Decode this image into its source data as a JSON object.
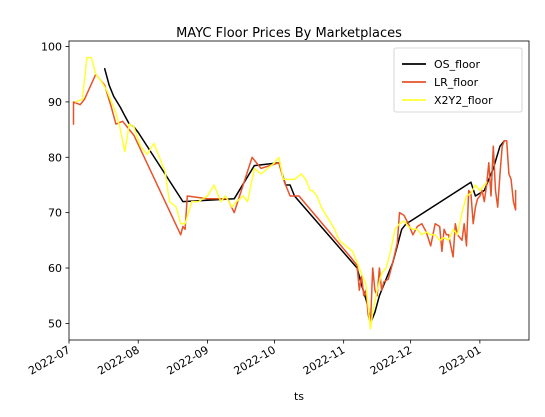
{
  "chart_data": {
    "type": "line",
    "title": "MAYC Floor Prices By Marketplaces",
    "xlabel": "ts",
    "ylabel": "",
    "ylim": [
      47,
      101
    ],
    "xlim": [
      "2022-07-01",
      "2023-01-23"
    ],
    "yticks": [
      50,
      60,
      70,
      80,
      90,
      100
    ],
    "xticks": [
      {
        "date": "2022-07-01",
        "label": "2022-07"
      },
      {
        "date": "2022-08-01",
        "label": "2022-08"
      },
      {
        "date": "2022-09-01",
        "label": "2022-09"
      },
      {
        "date": "2022-10-01",
        "label": "2022-10"
      },
      {
        "date": "2022-11-01",
        "label": "2022-11"
      },
      {
        "date": "2022-12-01",
        "label": "2022-12"
      },
      {
        "date": "2023-01-01",
        "label": "2023-01"
      }
    ],
    "grid": false,
    "legend_position": "top-right",
    "series": [
      {
        "name": "OS_floor",
        "color": "#000000",
        "points": [
          [
            "2022-07-17",
            96.0
          ],
          [
            "2022-07-19",
            93.0
          ],
          [
            "2022-07-21",
            91.0
          ],
          [
            "2022-07-24",
            89.0
          ],
          [
            "2022-07-26",
            87.5
          ],
          [
            "2022-07-28",
            86.0
          ],
          [
            "2022-07-30",
            85.5
          ],
          [
            "2022-08-01",
            84.5
          ],
          [
            "2022-08-21",
            72.0
          ],
          [
            "2022-09-13",
            72.5
          ],
          [
            "2022-09-22",
            78.5
          ],
          [
            "2022-10-03",
            79.0
          ],
          [
            "2022-10-06",
            75.0
          ],
          [
            "2022-10-08",
            75.0
          ],
          [
            "2022-10-10",
            73.0
          ],
          [
            "2022-11-07",
            60.0
          ],
          [
            "2022-11-09",
            57.0
          ],
          [
            "2022-11-12",
            53.0
          ],
          [
            "2022-11-13",
            50.0
          ],
          [
            "2022-11-15",
            52.0
          ],
          [
            "2022-11-17",
            55.0
          ],
          [
            "2022-11-20",
            58.0
          ],
          [
            "2022-11-23",
            61.0
          ],
          [
            "2022-11-25",
            64.0
          ],
          [
            "2022-11-27",
            67.0
          ],
          [
            "2022-11-29",
            68.0
          ],
          [
            "2022-12-01",
            68.5
          ],
          [
            "2022-12-28",
            75.5
          ],
          [
            "2022-12-30",
            73.0
          ],
          [
            "2023-01-03",
            74.0
          ],
          [
            "2023-01-07",
            78.0
          ],
          [
            "2023-01-10",
            82.0
          ],
          [
            "2023-01-12",
            83.0
          ]
        ]
      },
      {
        "name": "LR_floor",
        "color": "#e8532a",
        "points": [
          [
            "2022-07-03",
            86.0
          ],
          [
            "2022-07-03",
            90.0
          ],
          [
            "2022-07-06",
            89.5
          ],
          [
            "2022-07-08",
            90.5
          ],
          [
            "2022-07-13",
            95.0
          ],
          [
            "2022-07-17",
            93.0
          ],
          [
            "2022-07-20",
            89.0
          ],
          [
            "2022-07-22",
            86.0
          ],
          [
            "2022-07-25",
            86.5
          ],
          [
            "2022-07-28",
            85.0
          ],
          [
            "2022-07-30",
            84.0
          ],
          [
            "2022-08-20",
            66.0
          ],
          [
            "2022-08-21",
            67.5
          ],
          [
            "2022-08-22",
            67.0
          ],
          [
            "2022-08-23",
            73.0
          ],
          [
            "2022-09-01",
            72.5
          ],
          [
            "2022-09-10",
            72.5
          ],
          [
            "2022-09-13",
            70.0
          ],
          [
            "2022-09-21",
            80.0
          ],
          [
            "2022-09-25",
            78.0
          ],
          [
            "2022-10-03",
            79.0
          ],
          [
            "2022-10-05",
            76.0
          ],
          [
            "2022-10-08",
            73.0
          ],
          [
            "2022-10-12",
            73.0
          ],
          [
            "2022-11-04",
            62.0
          ],
          [
            "2022-11-06",
            61.0
          ],
          [
            "2022-11-07",
            60.5
          ],
          [
            "2022-11-08",
            56.0
          ],
          [
            "2022-11-09",
            58.5
          ],
          [
            "2022-11-10",
            55.0
          ],
          [
            "2022-11-11",
            56.0
          ],
          [
            "2022-11-12",
            51.5
          ],
          [
            "2022-11-13",
            50.0
          ],
          [
            "2022-11-14",
            60.0
          ],
          [
            "2022-11-15",
            56.0
          ],
          [
            "2022-11-16",
            55.0
          ],
          [
            "2022-11-17",
            60.0
          ],
          [
            "2022-11-18",
            56.0
          ],
          [
            "2022-11-19",
            57.5
          ],
          [
            "2022-11-21",
            58.0
          ],
          [
            "2022-11-23",
            61.0
          ],
          [
            "2022-11-25",
            64.5
          ],
          [
            "2022-11-26",
            70.0
          ],
          [
            "2022-11-28",
            69.5
          ],
          [
            "2022-11-30",
            68.0
          ],
          [
            "2022-12-02",
            66.0
          ],
          [
            "2022-12-04",
            67.5
          ],
          [
            "2022-12-06",
            68.0
          ],
          [
            "2022-12-08",
            66.5
          ],
          [
            "2022-12-10",
            64.0
          ],
          [
            "2022-12-12",
            68.0
          ],
          [
            "2022-12-14",
            67.5
          ],
          [
            "2022-12-15",
            63.0
          ],
          [
            "2022-12-16",
            67.0
          ],
          [
            "2022-12-17",
            66.0
          ],
          [
            "2022-12-18",
            66.0
          ],
          [
            "2022-12-19",
            64.0
          ],
          [
            "2022-12-20",
            62.0
          ],
          [
            "2022-12-21",
            68.0
          ],
          [
            "2022-12-22",
            66.0
          ],
          [
            "2022-12-24",
            65.0
          ],
          [
            "2022-12-25",
            68.0
          ],
          [
            "2022-12-26",
            64.0
          ],
          [
            "2022-12-27",
            74.0
          ],
          [
            "2022-12-28",
            73.5
          ],
          [
            "2022-12-29",
            68.0
          ],
          [
            "2022-12-30",
            71.0
          ],
          [
            "2022-12-31",
            72.5
          ],
          [
            "2023-01-01",
            73.0
          ],
          [
            "2023-01-02",
            74.0
          ],
          [
            "2023-01-03",
            72.0
          ],
          [
            "2023-01-04",
            75.0
          ],
          [
            "2023-01-05",
            79.0
          ],
          [
            "2023-01-06",
            73.0
          ],
          [
            "2023-01-07",
            82.0
          ],
          [
            "2023-01-08",
            74.0
          ],
          [
            "2023-01-09",
            71.0
          ],
          [
            "2023-01-10",
            77.0
          ],
          [
            "2023-01-11",
            82.0
          ],
          [
            "2023-01-12",
            83.0
          ],
          [
            "2023-01-13",
            83.0
          ],
          [
            "2023-01-14",
            77.0
          ],
          [
            "2023-01-15",
            76.0
          ],
          [
            "2023-01-16",
            72.0
          ],
          [
            "2023-01-17",
            70.5
          ],
          [
            "2023-01-17",
            74.0
          ]
        ]
      },
      {
        "name": "X2Y2_floor",
        "color": "#ffff33",
        "points": [
          [
            "2022-07-04",
            90.0
          ],
          [
            "2022-07-07",
            90.5
          ],
          [
            "2022-07-09",
            98.0
          ],
          [
            "2022-07-11",
            98.0
          ],
          [
            "2022-07-13",
            95.0
          ],
          [
            "2022-07-15",
            94.0
          ],
          [
            "2022-07-18",
            92.0
          ],
          [
            "2022-07-20",
            90.0
          ],
          [
            "2022-07-22",
            88.0
          ],
          [
            "2022-07-24",
            85.0
          ],
          [
            "2022-07-26",
            81.0
          ],
          [
            "2022-07-28",
            86.0
          ],
          [
            "2022-07-30",
            85.5
          ],
          [
            "2022-08-02",
            82.0
          ],
          [
            "2022-08-05",
            80.5
          ],
          [
            "2022-08-08",
            82.5
          ],
          [
            "2022-08-10",
            80.5
          ],
          [
            "2022-08-13",
            77.5
          ],
          [
            "2022-08-15",
            72.0
          ],
          [
            "2022-08-18",
            71.0
          ],
          [
            "2022-08-20",
            68.0
          ],
          [
            "2022-08-22",
            68.0
          ],
          [
            "2022-08-25",
            72.0
          ],
          [
            "2022-08-28",
            72.0
          ],
          [
            "2022-09-01",
            73.0
          ],
          [
            "2022-09-04",
            75.0
          ],
          [
            "2022-09-07",
            72.0
          ],
          [
            "2022-09-09",
            73.0
          ],
          [
            "2022-09-12",
            71.0
          ],
          [
            "2022-09-14",
            72.0
          ],
          [
            "2022-09-17",
            73.0
          ],
          [
            "2022-09-19",
            72.0
          ],
          [
            "2022-09-22",
            78.0
          ],
          [
            "2022-09-25",
            77.0
          ],
          [
            "2022-09-28",
            78.0
          ],
          [
            "2022-10-01",
            79.0
          ],
          [
            "2022-10-03",
            80.0
          ],
          [
            "2022-10-05",
            76.0
          ],
          [
            "2022-10-07",
            76.0
          ],
          [
            "2022-10-10",
            76.0
          ],
          [
            "2022-10-13",
            77.0
          ],
          [
            "2022-10-15",
            76.0
          ],
          [
            "2022-10-17",
            74.0
          ],
          [
            "2022-10-18",
            74.0
          ],
          [
            "2022-10-20",
            73.0
          ],
          [
            "2022-10-22",
            71.0
          ],
          [
            "2022-10-25",
            69.0
          ],
          [
            "2022-10-28",
            67.0
          ],
          [
            "2022-10-30",
            65.0
          ],
          [
            "2022-11-02",
            64.0
          ],
          [
            "2022-11-05",
            63.0
          ],
          [
            "2022-11-07",
            61.0
          ],
          [
            "2022-11-09",
            59.0
          ],
          [
            "2022-11-11",
            57.0
          ],
          [
            "2022-11-13",
            49.0
          ],
          [
            "2022-11-14",
            52.0
          ],
          [
            "2022-11-16",
            56.0
          ],
          [
            "2022-11-18",
            59.0
          ],
          [
            "2022-11-20",
            60.0
          ],
          [
            "2022-11-22",
            63.0
          ],
          [
            "2022-11-24",
            67.0
          ],
          [
            "2022-11-26",
            68.0
          ],
          [
            "2022-11-28",
            68.5
          ],
          [
            "2022-11-30",
            67.5
          ],
          [
            "2022-12-02",
            67.0
          ],
          [
            "2022-12-04",
            67.0
          ],
          [
            "2022-12-06",
            66.0
          ],
          [
            "2022-12-08",
            66.5
          ],
          [
            "2022-12-10",
            66.0
          ],
          [
            "2022-12-12",
            66.0
          ],
          [
            "2022-12-14",
            65.0
          ],
          [
            "2022-12-16",
            65.5
          ],
          [
            "2022-12-18",
            65.0
          ],
          [
            "2022-12-20",
            67.0
          ],
          [
            "2022-12-22",
            66.0
          ],
          [
            "2022-12-24",
            70.0
          ],
          [
            "2022-12-26",
            73.0
          ],
          [
            "2022-12-28",
            73.5
          ],
          [
            "2022-12-30",
            75.0
          ],
          [
            "2023-01-01",
            74.0
          ],
          [
            "2023-01-03",
            75.0
          ],
          [
            "2023-01-04",
            75.5
          ]
        ]
      }
    ]
  }
}
